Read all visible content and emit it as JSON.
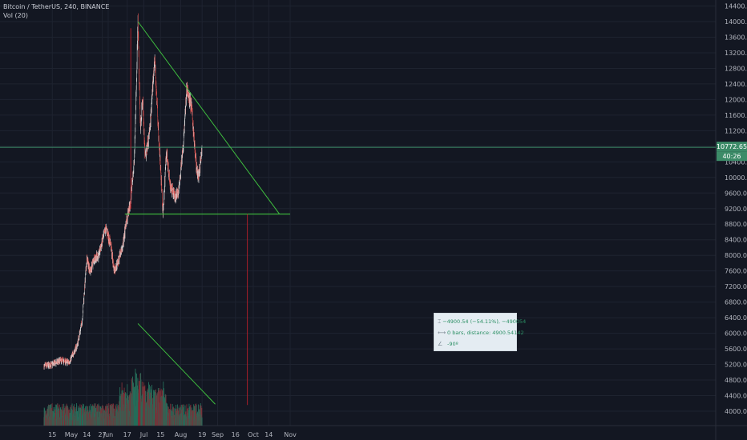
{
  "legend": {
    "symbol": "Bitcoin / TetherUS, 240, BINANCE",
    "indicator": "Vol (20)"
  },
  "colors": {
    "background": "#131722",
    "grid": "#1e2330",
    "up": "#d8d8d8",
    "down": "#e6534f",
    "volume_up": "#266d5a",
    "volume_down": "#7c3038",
    "trendline": "#3fbf3f",
    "price_line": "#3c8b68",
    "measure": "#a71e2a",
    "label_bg": "#3c8b68"
  },
  "chart_data": {
    "type": "candlestick",
    "title": "",
    "ylabel": "",
    "xlabel": "",
    "ylim": [
      3600,
      14400
    ],
    "y_ticks": [
      4000,
      4400,
      4800,
      5200,
      5600,
      6000,
      6400,
      6800,
      7200,
      7600,
      8000,
      8400,
      8800,
      9200,
      9600,
      10000,
      10400,
      10800,
      11200,
      11600,
      12000,
      12400,
      12800,
      13200,
      13600,
      14000,
      14400
    ],
    "y_tick_labels": [
      "4000.00",
      "4400.00",
      "4800.00",
      "5200.00",
      "5600.00",
      "6000.00",
      "6400.00",
      "6800.00",
      "7200.00",
      "7600.00",
      "8000.00",
      "8400.00",
      "8800.00",
      "9200.00",
      "9600.00",
      "10000.00",
      "10400.00",
      "10800.00",
      "11200.00",
      "11600.00",
      "12000.00",
      "12400.00",
      "12800.00",
      "13200.00",
      "13600.00",
      "14000.00",
      "14400.00"
    ],
    "x_range": [
      "2019-04-08",
      "2019-11-17"
    ],
    "x_ticks": [
      {
        "date": "2019-04-15",
        "label": "15"
      },
      {
        "date": "2019-05-01",
        "label": "May"
      },
      {
        "date": "2019-05-14",
        "label": "14"
      },
      {
        "date": "2019-05-27",
        "label": "27"
      },
      {
        "date": "2019-06-01",
        "label": "Jun"
      },
      {
        "date": "2019-06-17",
        "label": "17"
      },
      {
        "date": "2019-07-01",
        "label": "Jul"
      },
      {
        "date": "2019-07-15",
        "label": "15"
      },
      {
        "date": "2019-08-01",
        "label": "Aug"
      },
      {
        "date": "2019-08-19",
        "label": "19"
      },
      {
        "date": "2019-09-01",
        "label": "Sep"
      },
      {
        "date": "2019-09-16",
        "label": "16"
      },
      {
        "date": "2019-10-01",
        "label": "Oct"
      },
      {
        "date": "2019-10-14",
        "label": "14"
      },
      {
        "date": "2019-11-01",
        "label": "Nov"
      }
    ],
    "grid": true,
    "price_path": [
      {
        "date": "2019-04-08",
        "value": 5150
      },
      {
        "date": "2019-04-15",
        "value": 5200
      },
      {
        "date": "2019-04-22",
        "value": 5300
      },
      {
        "date": "2019-04-29",
        "value": 5250
      },
      {
        "date": "2019-05-06",
        "value": 5700
      },
      {
        "date": "2019-05-10",
        "value": 6300
      },
      {
        "date": "2019-05-14",
        "value": 7900
      },
      {
        "date": "2019-05-17",
        "value": 7600
      },
      {
        "date": "2019-05-20",
        "value": 7900
      },
      {
        "date": "2019-05-24",
        "value": 8000
      },
      {
        "date": "2019-05-30",
        "value": 8700
      },
      {
        "date": "2019-06-03",
        "value": 8300
      },
      {
        "date": "2019-06-06",
        "value": 7600
      },
      {
        "date": "2019-06-10",
        "value": 7900
      },
      {
        "date": "2019-06-13",
        "value": 8200
      },
      {
        "date": "2019-06-16",
        "value": 8800
      },
      {
        "date": "2019-06-20",
        "value": 9400
      },
      {
        "date": "2019-06-23",
        "value": 10500
      },
      {
        "date": "2019-06-26",
        "value": 14000
      },
      {
        "date": "2019-06-28",
        "value": 11300
      },
      {
        "date": "2019-06-30",
        "value": 12000
      },
      {
        "date": "2019-07-02",
        "value": 10500
      },
      {
        "date": "2019-07-06",
        "value": 11200
      },
      {
        "date": "2019-07-10",
        "value": 13100
      },
      {
        "date": "2019-07-13",
        "value": 11300
      },
      {
        "date": "2019-07-17",
        "value": 9100
      },
      {
        "date": "2019-07-20",
        "value": 10700
      },
      {
        "date": "2019-07-23",
        "value": 9800
      },
      {
        "date": "2019-07-27",
        "value": 9500
      },
      {
        "date": "2019-07-30",
        "value": 9600
      },
      {
        "date": "2019-08-03",
        "value": 10800
      },
      {
        "date": "2019-08-06",
        "value": 12300
      },
      {
        "date": "2019-08-10",
        "value": 11800
      },
      {
        "date": "2019-08-14",
        "value": 10300
      },
      {
        "date": "2019-08-16",
        "value": 10000
      },
      {
        "date": "2019-08-19",
        "value": 10700
      }
    ],
    "annotations": {
      "last_price": {
        "value": 10772.65,
        "label": "10772.65",
        "countdown": "40:26"
      },
      "upper_trendline": {
        "from": {
          "date": "2019-06-26",
          "value": 14000
        },
        "to": {
          "date": "2019-10-23",
          "value": 9060
        }
      },
      "support_line": {
        "from": {
          "date": "2019-06-15",
          "value": 9060
        },
        "to": {
          "date": "2019-11-01",
          "value": 9060
        }
      },
      "volume_trendline": {
        "from": {
          "date": "2019-06-26",
          "value": 6250
        },
        "to": {
          "date": "2019-08-30",
          "value": 4180
        }
      },
      "vertical_marker": {
        "date": "2019-06-20",
        "from": 9200,
        "to": 13830
      },
      "measure_line": {
        "date": "2019-09-26",
        "from": 9060,
        "to": 4160
      }
    },
    "measure_tooltip": {
      "price_range": "−4900.54 (−54.11%), −490054",
      "bars": "0 bars, distance: 4900.54142",
      "angle": "-90º"
    }
  }
}
